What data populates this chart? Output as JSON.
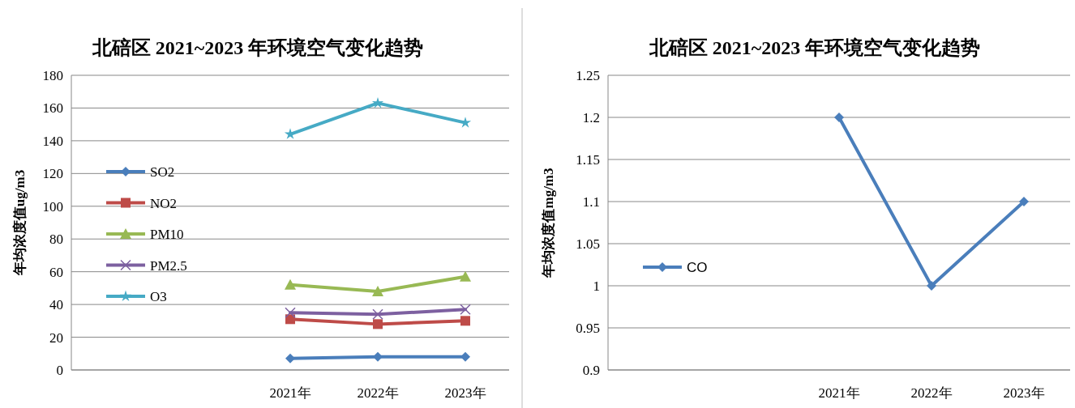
{
  "chart_data": [
    {
      "type": "line",
      "title": "北碚区 2021~2023 年环境空气变化趋势",
      "ylabel": "年均浓度值ug/m3",
      "categories": [
        null,
        null,
        "2021年",
        "2022年",
        "2023年"
      ],
      "ylim": [
        0,
        180
      ],
      "yticks": [
        0,
        20,
        40,
        60,
        80,
        100,
        120,
        140,
        160,
        180
      ],
      "grid": "y",
      "legend": "left",
      "series": [
        {
          "name": "SO2",
          "color": "#4a7ebb",
          "marker": "diamond",
          "values": [
            null,
            null,
            7,
            8,
            8
          ]
        },
        {
          "name": "NO2",
          "color": "#be4b48",
          "marker": "square",
          "values": [
            null,
            null,
            31,
            28,
            30
          ]
        },
        {
          "name": "PM10",
          "color": "#98b954",
          "marker": "triangle",
          "values": [
            null,
            null,
            52,
            48,
            57
          ]
        },
        {
          "name": "PM2.5",
          "color": "#7d60a0",
          "marker": "cross",
          "values": [
            null,
            null,
            35,
            34,
            37
          ]
        },
        {
          "name": "O3",
          "color": "#46aac5",
          "marker": "star",
          "values": [
            null,
            null,
            144,
            163,
            151
          ]
        }
      ]
    },
    {
      "type": "line",
      "title": "北碚区 2021~2023 年环境空气变化趋势",
      "ylabel": "年均浓度值mg/m3",
      "categories": [
        null,
        null,
        "2021年",
        "2022年",
        "2023年"
      ],
      "ylim": [
        0.9,
        1.25
      ],
      "yticks": [
        0.9,
        0.95,
        1,
        1.05,
        1.1,
        1.15,
        1.2,
        1.25
      ],
      "grid": "y",
      "legend": "left",
      "series": [
        {
          "name": "CO",
          "color": "#4a7ebb",
          "marker": "diamond",
          "values": [
            null,
            null,
            1.2,
            1,
            1.1
          ]
        }
      ]
    }
  ]
}
